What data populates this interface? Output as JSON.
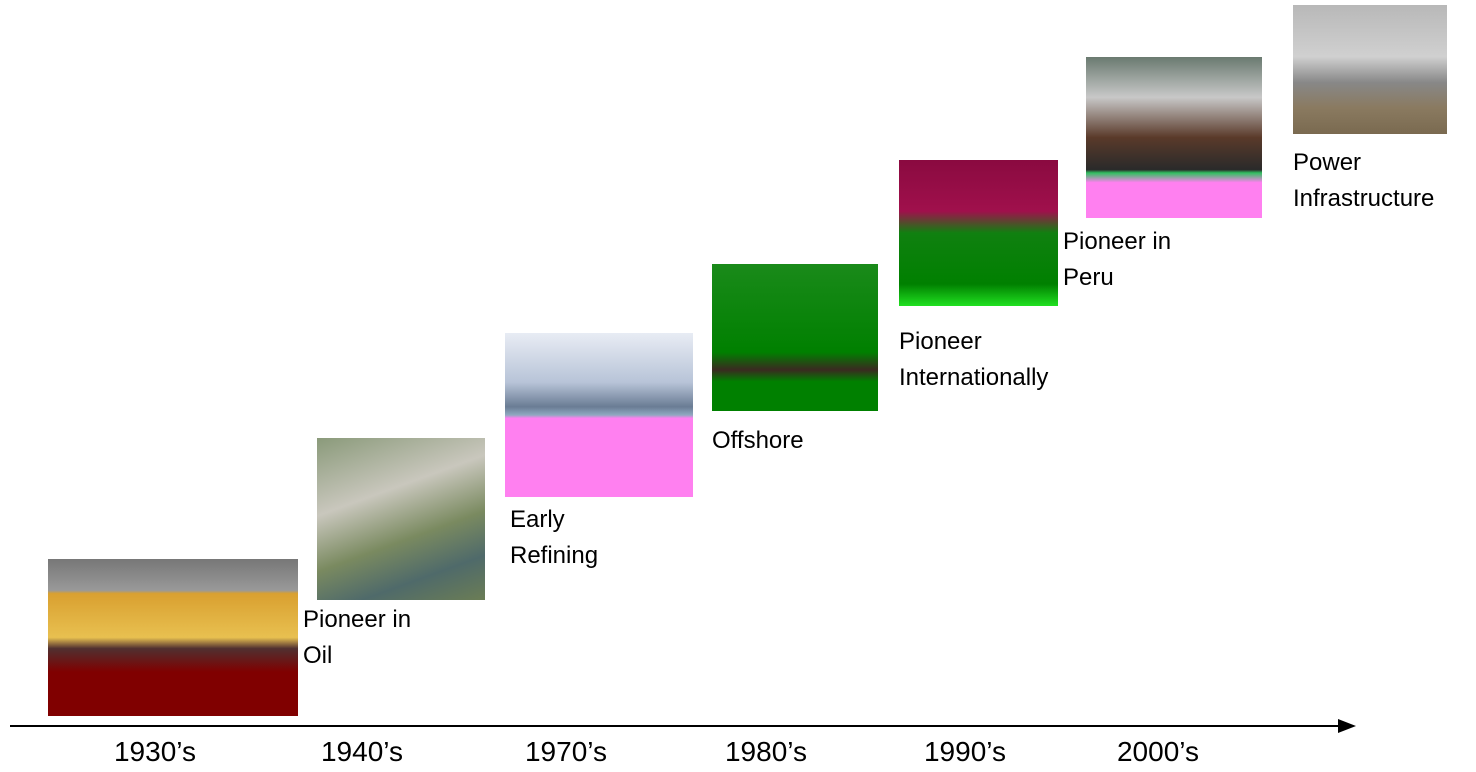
{
  "timeline": {
    "years": [
      "1930’s",
      "1940’s",
      "1970’s",
      "1980’s",
      "1990’s",
      "2000’s"
    ],
    "labels": [
      "Pioneer in Oil",
      "Early Refining",
      "Offshore",
      "Pioneer Internationally",
      "Pioneer in Peru",
      "Power Infrastructure"
    ]
  }
}
